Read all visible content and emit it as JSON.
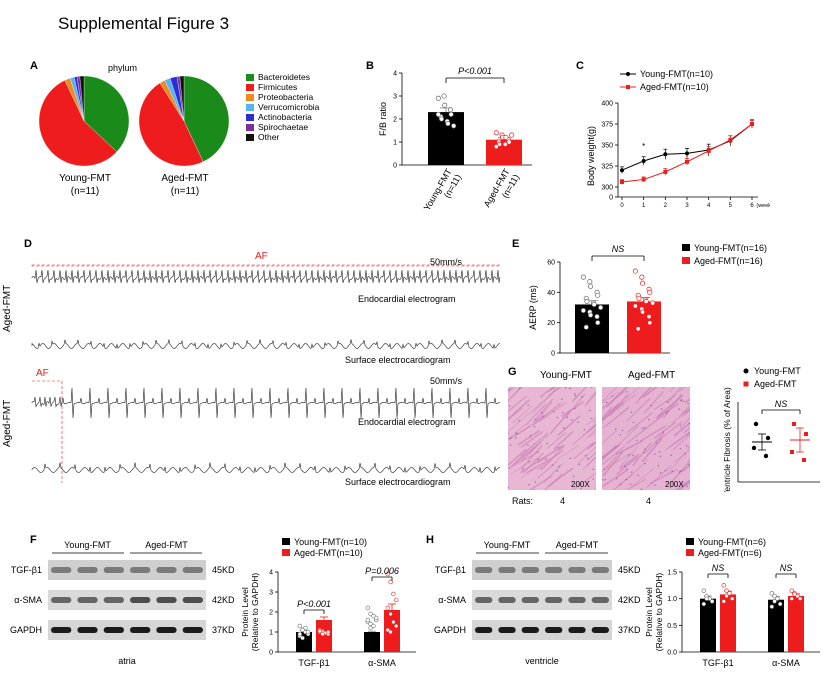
{
  "title": "Supplemental Figure 3",
  "panels": {
    "A": {
      "label": "A",
      "header": "phylum",
      "groups": [
        {
          "name": "Young-FMT",
          "n": "(n=11)"
        },
        {
          "name": "Aged-FMT",
          "n": "(n=11)"
        }
      ],
      "legend": [
        {
          "name": "Bacteroidetes",
          "color": "#1a8a1a"
        },
        {
          "name": "Firmicutes",
          "color": "#ee1c1c"
        },
        {
          "name": "Proteobacteria",
          "color": "#f08a1c"
        },
        {
          "name": "Verrucomicrobia",
          "color": "#56b4f0"
        },
        {
          "name": "Actinobacteria",
          "color": "#2d2dd6"
        },
        {
          "name": "Spirochaetae",
          "color": "#7a2ea0"
        },
        {
          "name": "Other",
          "color": "#111111"
        }
      ]
    },
    "B": {
      "label": "B",
      "ylabel": "F/B ratio",
      "pvalue": "P<0.001"
    },
    "C": {
      "label": "C",
      "ylabel": "Body weight(g)",
      "xunit": "(weeks)",
      "star": "*",
      "legend": [
        "Young-FMT(n=10)",
        "Aged-FMT(n=10)"
      ]
    },
    "D": {
      "label": "D",
      "af": "AF",
      "speed": "50mm/s",
      "row1": "Aged-FMT",
      "row2": "Aged-FMT",
      "endo": "Endocardial electrogram",
      "surface": "Surface electrocardiogram"
    },
    "E": {
      "label": "E",
      "ylabel": "AERP (ms)",
      "ns": "NS",
      "legend": [
        "Young-FMT(n=16)",
        "Aged-FMT(n=16)"
      ]
    },
    "G": {
      "label": "G",
      "left_title": "Young-FMT",
      "right_title": "Aged-FMT",
      "mag": "200X",
      "rats_label": "Rats:",
      "rats_left": "4",
      "rats_right": "4",
      "ylabel": "Ventricle Fibrosis (% of Area)",
      "ns": "NS",
      "legend": [
        "Young-FMT",
        "Aged-FMT"
      ]
    },
    "F": {
      "label": "F",
      "young": "Young-FMT",
      "aged": "Aged-FMT",
      "bands": [
        "TGF-β1",
        "α-SMA",
        "GAPDH"
      ],
      "sizes": [
        "45KD",
        "42KD",
        "37KD"
      ],
      "tissue": "atria",
      "ylabel1": "Protein Level",
      "ylabel2": "(Relative to GAPDH)",
      "p1": "P<0.001",
      "p2": "P=0.006",
      "cat1": "TGF-β1",
      "cat2": "α-SMA",
      "legend": [
        "Young-FMT(n=10)",
        "Aged-FMT(n=10)"
      ]
    },
    "H": {
      "label": "H",
      "young": "Young-FMT",
      "aged": "Aged-FMT",
      "bands": [
        "TGF-β1",
        "α-SMA",
        "GAPDH"
      ],
      "sizes": [
        "45KD",
        "42KD",
        "37KD"
      ],
      "tissue": "ventricle",
      "ylabel1": "Protein Level",
      "ylabel2": "(Relative to GAPDH)",
      "ns1": "NS",
      "ns2": "NS",
      "cat1": "TGF-β1",
      "cat2": "α-SMA",
      "legend": [
        "Young-FMT(n=6)",
        "Aged-FMT(n=6)"
      ]
    }
  },
  "colors": {
    "young": "#000000",
    "aged": "#ee1c1c"
  },
  "chart_data": [
    {
      "id": "A-young",
      "type": "pie",
      "categories": [
        "Bacteroidetes",
        "Firmicutes",
        "Proteobacteria",
        "Verrucomicrobia",
        "Actinobacteria",
        "Spirochaetae",
        "Other"
      ],
      "values": [
        37,
        56,
        2,
        1.5,
        1,
        1,
        1.5
      ]
    },
    {
      "id": "A-aged",
      "type": "pie",
      "categories": [
        "Bacteroidetes",
        "Firmicutes",
        "Proteobacteria",
        "Verrucomicrobia",
        "Actinobacteria",
        "Spirochaetae",
        "Other"
      ],
      "values": [
        43,
        48,
        2,
        2,
        2.5,
        1,
        1.5
      ]
    },
    {
      "id": "B",
      "type": "bar",
      "categories": [
        "Young-FMT\n(n=11)",
        "Aged-FMT\n(n=11)"
      ],
      "values": [
        2.3,
        1.1
      ],
      "errors": [
        0.18,
        0.08
      ],
      "ylim": [
        0,
        4
      ],
      "yticks": [
        0,
        1,
        2,
        3,
        4
      ],
      "points": [
        [
          2.9,
          3.0,
          2.6,
          2.4,
          2.2,
          2.1,
          2.0,
          1.9,
          1.8,
          1.7,
          2.2
        ],
        [
          1.4,
          1.3,
          1.2,
          1.1,
          1.0,
          1.0,
          0.9,
          0.9,
          1.2,
          1.3,
          0.8
        ]
      ]
    },
    {
      "id": "C",
      "type": "line",
      "x": [
        0,
        1,
        2,
        3,
        4,
        5,
        6
      ],
      "ylim": [
        0,
        400
      ],
      "yticks": [
        0,
        300,
        325,
        350,
        375,
        400
      ],
      "ytick_labels": [
        "0",
        "300",
        "325",
        "350",
        "375",
        "400"
      ],
      "series": [
        {
          "name": "Young-FMT(n=10)",
          "values": [
            320,
            331,
            339,
            340,
            344,
            355,
            375
          ],
          "errors": [
            4,
            5,
            6,
            6,
            7,
            6,
            5
          ]
        },
        {
          "name": "Aged-FMT(n=10)",
          "values": [
            306,
            309,
            318,
            330,
            343,
            356,
            375
          ],
          "errors": [
            3,
            3,
            4,
            4,
            5,
            5,
            4
          ]
        }
      ]
    },
    {
      "id": "E",
      "type": "bar",
      "categories": [
        "Young-FMT(n=16)",
        "Aged-FMT(n=16)"
      ],
      "values": [
        32,
        34
      ],
      "errors": [
        2.5,
        2.5
      ],
      "ylim": [
        0,
        60
      ],
      "yticks": [
        0,
        20,
        40,
        60
      ],
      "points": [
        [
          50,
          47,
          44,
          40,
          38,
          36,
          34,
          33,
          32,
          30,
          28,
          27,
          25,
          24,
          20,
          17
        ],
        [
          54,
          50,
          46,
          42,
          40,
          38,
          36,
          35,
          34,
          33,
          31,
          29,
          27,
          24,
          20,
          16
        ]
      ]
    },
    {
      "id": "G",
      "type": "scatter",
      "categories": [
        "Young-FMT",
        "Aged-FMT"
      ],
      "means": [
        1.0,
        1.05
      ],
      "errors": [
        0.2,
        0.3
      ],
      "ylim": [
        0,
        2.0
      ],
      "points": [
        [
          1.45,
          1.1,
          0.85,
          0.65
        ],
        [
          1.45,
          1.2,
          0.75,
          0.55
        ]
      ]
    },
    {
      "id": "F",
      "type": "bar",
      "categories": [
        "TGF-β1",
        "α-SMA"
      ],
      "ylim": [
        0,
        4
      ],
      "yticks": [
        0,
        1,
        2,
        3,
        4
      ],
      "series": [
        {
          "name": "Young-FMT(n=10)",
          "values": [
            1.0,
            1.0
          ],
          "errors": [
            0.08,
            0.04
          ]
        },
        {
          "name": "Aged-FMT(n=10)",
          "values": [
            1.6,
            2.1
          ],
          "errors": [
            0.15,
            0.3
          ]
        }
      ],
      "points": [
        [
          [
            1.3,
            1.1,
            1.0,
            0.9,
            0.8,
            0.7,
            1.2,
            1.0,
            0.9,
            1.1
          ],
          [
            1.0,
            1.05,
            0.95,
            0.9,
            1.1,
            1.0,
            0.95,
            1.0,
            1.05,
            0.9
          ]
        ],
        [
          [
            2.2,
            1.9,
            1.8,
            1.6,
            1.5,
            1.4,
            1.3,
            1.7,
            1.6,
            1.2
          ],
          [
            3.9,
            3.5,
            2.9,
            2.6,
            2.2,
            1.9,
            1.5,
            1.3,
            1.1,
            1.0
          ]
        ]
      ]
    },
    {
      "id": "H",
      "type": "bar",
      "categories": [
        "TGF-β1",
        "α-SMA"
      ],
      "ylim": [
        0,
        1.5
      ],
      "yticks": [
        0,
        0.5,
        1.0,
        1.5
      ],
      "ytick_labels": [
        "0.0",
        "0.5",
        "1.0",
        "1.5"
      ],
      "series": [
        {
          "name": "Young-FMT(n=6)",
          "values": [
            1.0,
            0.98
          ],
          "errors": [
            0.05,
            0.06
          ]
        },
        {
          "name": "Aged-FMT(n=6)",
          "values": [
            1.08,
            1.05
          ],
          "errors": [
            0.06,
            0.04
          ]
        }
      ],
      "points": [
        [
          [
            1.15,
            1.05,
            1.0,
            0.95,
            0.9,
            1.0
          ],
          [
            1.25,
            1.15,
            1.1,
            1.0,
            0.95,
            1.05
          ]
        ],
        [
          [
            1.1,
            1.05,
            1.0,
            0.9,
            0.85,
            0.95
          ],
          [
            1.15,
            1.1,
            1.05,
            1.0,
            1.0,
            1.08
          ]
        ]
      ]
    }
  ]
}
